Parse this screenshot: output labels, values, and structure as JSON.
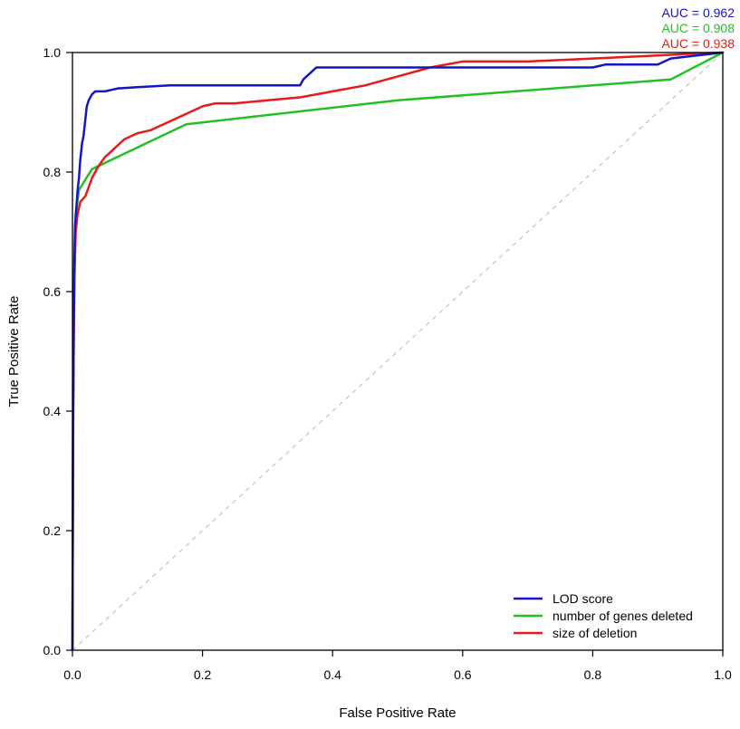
{
  "chart_data": {
    "type": "line",
    "title": "",
    "xlabel": "False Positive Rate",
    "ylabel": "True Positive Rate",
    "xlim": [
      0,
      1
    ],
    "ylim": [
      0,
      1
    ],
    "x_ticks": [
      "0.0",
      "0.2",
      "0.4",
      "0.6",
      "0.8",
      "1.0"
    ],
    "y_ticks": [
      "0.0",
      "0.2",
      "0.4",
      "0.6",
      "0.8",
      "1.0"
    ],
    "grid": false,
    "legend_position": "bottom-right",
    "diagonal_reference": {
      "x": [
        0,
        1
      ],
      "y": [
        0,
        1
      ],
      "color": "#b8b8b8",
      "dashed": true
    },
    "series": [
      {
        "name": "LOD score",
        "color": "#1515c8",
        "auc_label": "AUC = 0.962",
        "x": [
          0,
          0.001,
          0.002,
          0.003,
          0.004,
          0.006,
          0.008,
          0.01,
          0.012,
          0.015,
          0.017,
          0.02,
          0.022,
          0.025,
          0.03,
          0.035,
          0.05,
          0.07,
          0.1,
          0.15,
          0.35,
          0.355,
          0.365,
          0.375,
          0.6,
          0.8,
          0.82,
          0.9,
          0.92,
          1.0
        ],
        "y": [
          0,
          0.35,
          0.55,
          0.66,
          0.71,
          0.74,
          0.77,
          0.79,
          0.82,
          0.85,
          0.86,
          0.89,
          0.91,
          0.92,
          0.93,
          0.935,
          0.935,
          0.94,
          0.942,
          0.945,
          0.945,
          0.955,
          0.965,
          0.975,
          0.975,
          0.975,
          0.98,
          0.98,
          0.99,
          1.0
        ]
      },
      {
        "name": "number of genes deleted",
        "color": "#22c022",
        "auc_label": "AUC = 0.908",
        "x": [
          0,
          0.001,
          0.003,
          0.005,
          0.01,
          0.03,
          0.175,
          0.5,
          0.92,
          1.0
        ],
        "y": [
          0,
          0.45,
          0.65,
          0.73,
          0.77,
          0.805,
          0.88,
          0.92,
          0.955,
          1.0
        ]
      },
      {
        "name": "size of deletion",
        "color": "#e81a1a",
        "auc_label": "AUC = 0.938",
        "x": [
          0,
          0.001,
          0.003,
          0.005,
          0.008,
          0.012,
          0.02,
          0.03,
          0.04,
          0.05,
          0.06,
          0.07,
          0.08,
          0.09,
          0.1,
          0.12,
          0.14,
          0.16,
          0.18,
          0.2,
          0.22,
          0.25,
          0.3,
          0.35,
          0.4,
          0.45,
          0.5,
          0.55,
          0.6,
          0.7,
          0.8,
          0.9,
          0.95,
          1.0
        ],
        "y": [
          0,
          0.4,
          0.62,
          0.7,
          0.73,
          0.75,
          0.76,
          0.79,
          0.81,
          0.825,
          0.835,
          0.845,
          0.855,
          0.86,
          0.865,
          0.87,
          0.88,
          0.89,
          0.9,
          0.91,
          0.915,
          0.915,
          0.92,
          0.925,
          0.935,
          0.945,
          0.96,
          0.975,
          0.985,
          0.985,
          0.99,
          0.995,
          0.998,
          1.0
        ]
      }
    ]
  }
}
